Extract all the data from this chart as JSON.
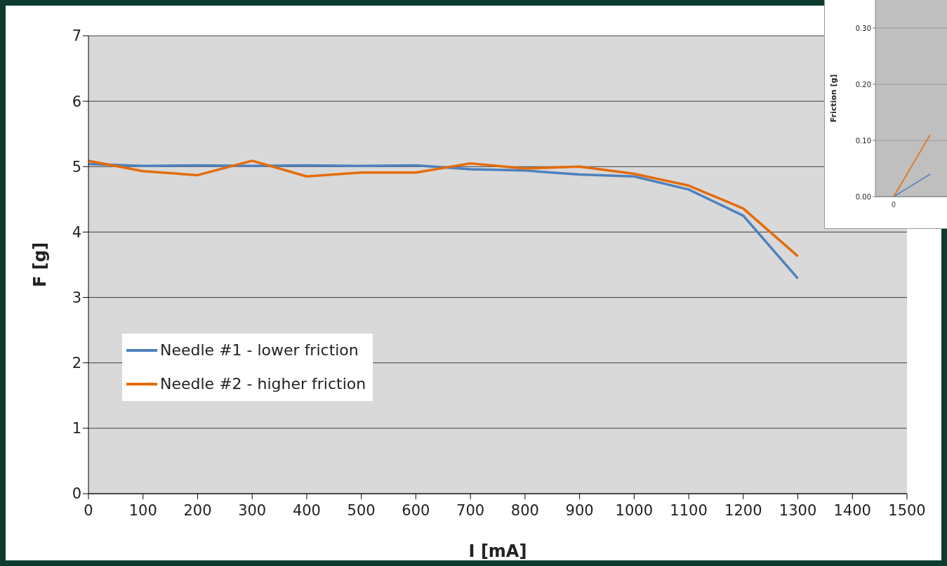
{
  "chart_data": [
    {
      "type": "line",
      "xlabel": "I [mA]",
      "ylabel": "F [g]",
      "x": [
        0,
        100,
        200,
        300,
        400,
        500,
        600,
        700,
        800,
        900,
        1000,
        1100,
        1200,
        1300
      ],
      "xlim": [
        0,
        1500
      ],
      "xticks": [
        0,
        100,
        200,
        300,
        400,
        500,
        600,
        700,
        800,
        900,
        1000,
        1100,
        1200,
        1300,
        1400,
        1500
      ],
      "ylim": [
        0,
        7
      ],
      "yticks": [
        0,
        1,
        2,
        3,
        4,
        5,
        6,
        7
      ],
      "grid": "y",
      "legend": "bottom left",
      "series": [
        {
          "name": "Needle #1 - lower friction",
          "color": "#4f81bd",
          "values": [
            5.04,
            5.01,
            5.02,
            5.01,
            5.02,
            5.01,
            5.02,
            4.96,
            4.94,
            4.88,
            4.85,
            4.65,
            4.25,
            3.29
          ]
        },
        {
          "name": "Needle #2 - higher friction",
          "color": "#e36c0a",
          "values": [
            5.09,
            4.93,
            4.87,
            5.09,
            4.85,
            4.91,
            4.91,
            5.05,
            4.97,
            5.0,
            4.89,
            4.71,
            4.36,
            3.63
          ]
        }
      ]
    },
    {
      "type": "line",
      "ylabel": "Friction [g]",
      "categories": [
        "0",
        null
      ],
      "ylim": [
        0,
        0.35
      ],
      "yticks": [
        {
          "value": 0,
          "label": "0.00"
        },
        {
          "value": 0.1,
          "label": "0.10"
        },
        {
          "value": 0.2,
          "label": "0.20"
        },
        {
          "value": 0.3,
          "label": "0.30"
        }
      ],
      "grid": "y",
      "series": [
        {
          "color": "#4f81bd",
          "values": [
            0,
            0.04
          ]
        },
        {
          "color": "#e36c0a",
          "values": [
            0,
            0.11
          ]
        }
      ]
    }
  ]
}
